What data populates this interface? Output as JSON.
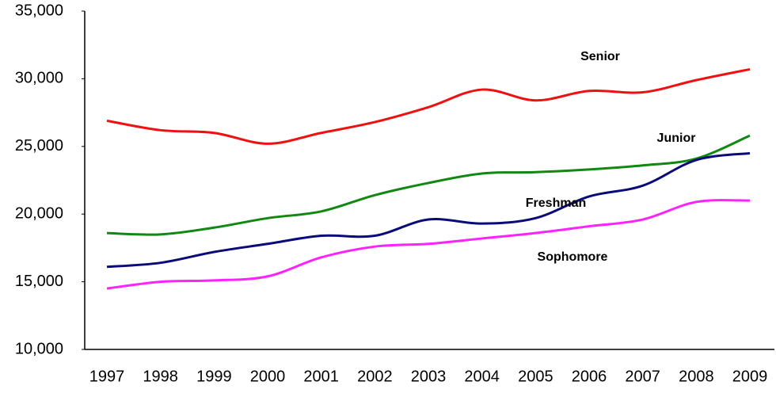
{
  "chart_data": {
    "type": "line",
    "categories": [
      "1997",
      "1998",
      "1999",
      "2000",
      "2001",
      "2002",
      "2003",
      "2004",
      "2005",
      "2006",
      "2007",
      "2008",
      "2009"
    ],
    "series": [
      {
        "name": "Senior",
        "color": "#ee1111",
        "values": [
          26900,
          26200,
          26000,
          25200,
          26000,
          26800,
          27900,
          29200,
          28400,
          29100,
          29000,
          29900,
          30700
        ]
      },
      {
        "name": "Junior",
        "color": "#118811",
        "values": [
          18600,
          18500,
          19000,
          19700,
          20200,
          21400,
          22300,
          23000,
          23100,
          23300,
          23600,
          24100,
          25800
        ]
      },
      {
        "name": "Freshman",
        "color": "#0a0a7a",
        "values": [
          16100,
          16400,
          17200,
          17800,
          18400,
          18400,
          19600,
          19300,
          19700,
          21300,
          22100,
          24000,
          24500
        ]
      },
      {
        "name": "Sophomore",
        "color": "#ff22ff",
        "values": [
          14500,
          15000,
          15100,
          15400,
          16800,
          17600,
          17800,
          18200,
          18600,
          19100,
          19600,
          20900,
          21000
        ]
      }
    ],
    "ylim": [
      10000,
      35000
    ],
    "yticks": [
      {
        "value": 10000,
        "label": "10,000"
      },
      {
        "value": 15000,
        "label": "15,000"
      },
      {
        "value": 20000,
        "label": "20,000"
      },
      {
        "value": 25000,
        "label": "25,000"
      },
      {
        "value": 30000,
        "label": "30,000"
      },
      {
        "value": 35000,
        "label": "35,000"
      }
    ],
    "grid": false
  }
}
